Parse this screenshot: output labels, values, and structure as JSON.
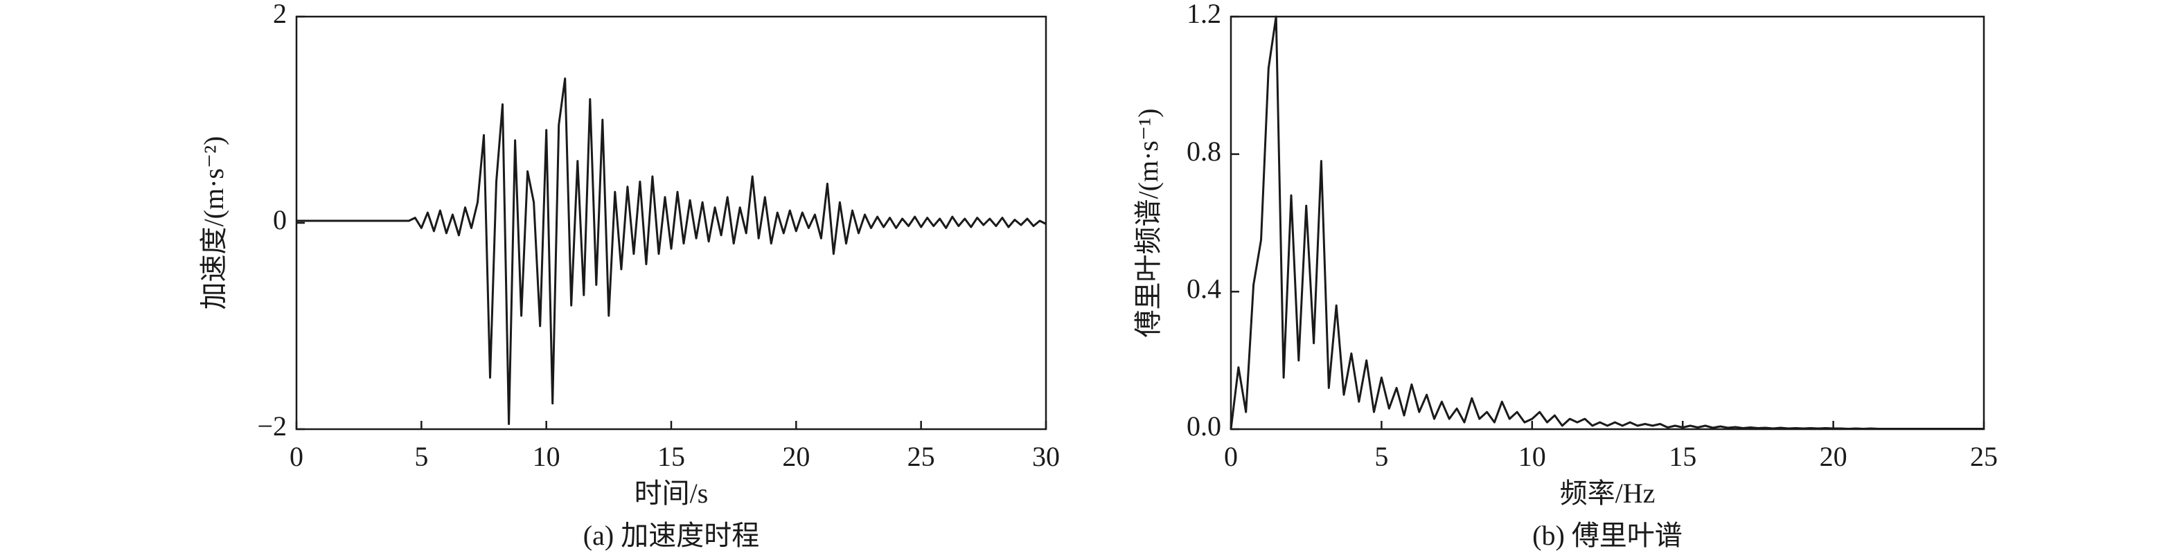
{
  "chart_data": [
    {
      "type": "line",
      "caption": "(a) 加速度时程",
      "xlabel": "时间/s",
      "ylabel": "加速度/(m·s⁻²)",
      "xlim": [
        0,
        30
      ],
      "xticks": [
        0,
        5,
        10,
        15,
        20,
        25,
        30
      ],
      "ylim": [
        -2,
        2
      ],
      "yticks": [
        {
          "value": -2,
          "label": "−2"
        },
        0,
        2
      ],
      "series": [
        {
          "color": "#1a1a1a",
          "x": [
            0,
            0.25,
            0.5,
            0.75,
            1,
            1.25,
            1.5,
            1.75,
            2,
            2.25,
            2.5,
            2.75,
            3,
            3.25,
            3.5,
            3.75,
            4,
            4.25,
            4.5,
            4.75,
            5,
            5.25,
            5.5,
            5.75,
            6,
            6.25,
            6.5,
            6.75,
            7,
            7.25,
            7.5,
            7.75,
            8,
            8.25,
            8.5,
            8.75,
            9,
            9.25,
            9.5,
            9.75,
            10,
            10.25,
            10.5,
            10.75,
            11,
            11.25,
            11.5,
            11.75,
            12,
            12.25,
            12.5,
            12.75,
            13,
            13.25,
            13.5,
            13.75,
            14,
            14.25,
            14.5,
            14.75,
            15,
            15.25,
            15.5,
            15.75,
            16,
            16.25,
            16.5,
            16.75,
            17,
            17.25,
            17.5,
            17.75,
            18,
            18.25,
            18.5,
            18.75,
            19,
            19.25,
            19.5,
            19.75,
            20,
            20.25,
            20.5,
            20.75,
            21,
            21.25,
            21.5,
            21.75,
            22,
            22.25,
            22.5,
            22.75,
            23,
            23.25,
            23.5,
            23.75,
            24,
            24.25,
            24.5,
            24.75,
            25,
            25.25,
            25.5,
            25.75,
            26,
            26.25,
            26.5,
            26.75,
            27,
            27.25,
            27.5,
            27.75,
            28,
            28.25,
            28.5,
            28.75,
            29,
            29.25,
            29.5,
            29.75,
            30
          ],
          "values": [
            0.02,
            0.02,
            0.02,
            0.02,
            0.02,
            0.02,
            0.02,
            0.02,
            0.02,
            0.02,
            0.02,
            0.02,
            0.02,
            0.02,
            0.02,
            0.02,
            0.02,
            0.02,
            0.02,
            0.05,
            -0.05,
            0.1,
            -0.08,
            0.12,
            -0.1,
            0.08,
            -0.12,
            0.15,
            -0.05,
            0.2,
            0.85,
            -1.5,
            0.4,
            1.15,
            -1.95,
            0.8,
            -0.9,
            0.5,
            0.2,
            -1.0,
            0.9,
            -1.75,
            0.95,
            1.4,
            -0.8,
            0.6,
            -0.7,
            1.2,
            -0.6,
            1.0,
            -0.9,
            0.3,
            -0.45,
            0.35,
            -0.3,
            0.4,
            -0.4,
            0.45,
            -0.3,
            0.25,
            -0.25,
            0.3,
            -0.2,
            0.22,
            -0.15,
            0.2,
            -0.18,
            0.15,
            -0.12,
            0.25,
            -0.2,
            0.15,
            -0.1,
            0.45,
            -0.15,
            0.25,
            -0.2,
            0.1,
            -0.1,
            0.12,
            -0.08,
            0.1,
            -0.05,
            0.08,
            -0.15,
            0.38,
            -0.3,
            0.2,
            -0.2,
            0.12,
            -0.1,
            0.08,
            -0.05,
            0.06,
            -0.04,
            0.05,
            -0.05,
            0.04,
            -0.03,
            0.06,
            -0.04,
            0.05,
            -0.03,
            0.04,
            -0.05,
            0.06,
            -0.03,
            0.04,
            -0.04,
            0.05,
            -0.02,
            0.04,
            -0.03,
            0.05,
            -0.04,
            0.03,
            -0.02,
            0.04,
            -0.03,
            0.02,
            -0.01
          ]
        }
      ]
    },
    {
      "type": "line",
      "caption": "(b) 傅里叶谱",
      "xlabel": "频率/Hz",
      "ylabel": "傅里叶频谱/(m·s⁻¹)",
      "xlim": [
        0,
        25
      ],
      "xticks": [
        0,
        5,
        10,
        15,
        20,
        25
      ],
      "ylim": [
        0,
        1.2
      ],
      "yticks": [
        {
          "value": 0,
          "label": "0.0"
        },
        0.4,
        0.8,
        1.2
      ],
      "series": [
        {
          "color": "#1a1a1a",
          "x": [
            0,
            0.25,
            0.5,
            0.75,
            1,
            1.25,
            1.5,
            1.75,
            2,
            2.25,
            2.5,
            2.75,
            3,
            3.25,
            3.5,
            3.75,
            4,
            4.25,
            4.5,
            4.75,
            5,
            5.25,
            5.5,
            5.75,
            6,
            6.25,
            6.5,
            6.75,
            7,
            7.25,
            7.5,
            7.75,
            8,
            8.25,
            8.5,
            8.75,
            9,
            9.25,
            9.5,
            9.75,
            10,
            10.25,
            10.5,
            10.75,
            11,
            11.25,
            11.5,
            11.75,
            12,
            12.25,
            12.5,
            12.75,
            13,
            13.25,
            13.5,
            13.75,
            14,
            14.25,
            14.5,
            14.75,
            15,
            15.25,
            15.5,
            15.75,
            16,
            16.25,
            16.5,
            16.75,
            17,
            17.25,
            17.5,
            17.75,
            18,
            18.25,
            18.5,
            18.75,
            19,
            19.25,
            19.5,
            19.75,
            20,
            20.25,
            20.5,
            20.75,
            21,
            21.25,
            21.5,
            21.75,
            22,
            22.25,
            22.5,
            22.75,
            23,
            23.25,
            23.5,
            23.75,
            24,
            24.25,
            24.5,
            24.75,
            25
          ],
          "values": [
            0,
            0.18,
            0.05,
            0.42,
            0.55,
            1.05,
            1.2,
            0.15,
            0.68,
            0.2,
            0.65,
            0.25,
            0.78,
            0.12,
            0.36,
            0.1,
            0.22,
            0.08,
            0.2,
            0.05,
            0.15,
            0.06,
            0.12,
            0.04,
            0.13,
            0.05,
            0.1,
            0.03,
            0.08,
            0.03,
            0.06,
            0.02,
            0.09,
            0.03,
            0.05,
            0.02,
            0.08,
            0.03,
            0.05,
            0.02,
            0.03,
            0.05,
            0.02,
            0.04,
            0.01,
            0.03,
            0.02,
            0.03,
            0.01,
            0.02,
            0.01,
            0.02,
            0.01,
            0.02,
            0.01,
            0.015,
            0.01,
            0.015,
            0.005,
            0.01,
            0.005,
            0.01,
            0.005,
            0.01,
            0.004,
            0.008,
            0.004,
            0.006,
            0.003,
            0.005,
            0.003,
            0.004,
            0.002,
            0.004,
            0.002,
            0.003,
            0.002,
            0.003,
            0.002,
            0.003,
            0.002,
            0.002,
            0.001,
            0.002,
            0.001,
            0.002,
            0.001,
            0.001,
            0.001,
            0.001,
            0.001,
            0.001,
            0.001,
            0.001,
            0.001,
            0.001,
            0.001,
            0.001,
            0.001,
            0.001,
            0.001
          ]
        }
      ]
    }
  ]
}
